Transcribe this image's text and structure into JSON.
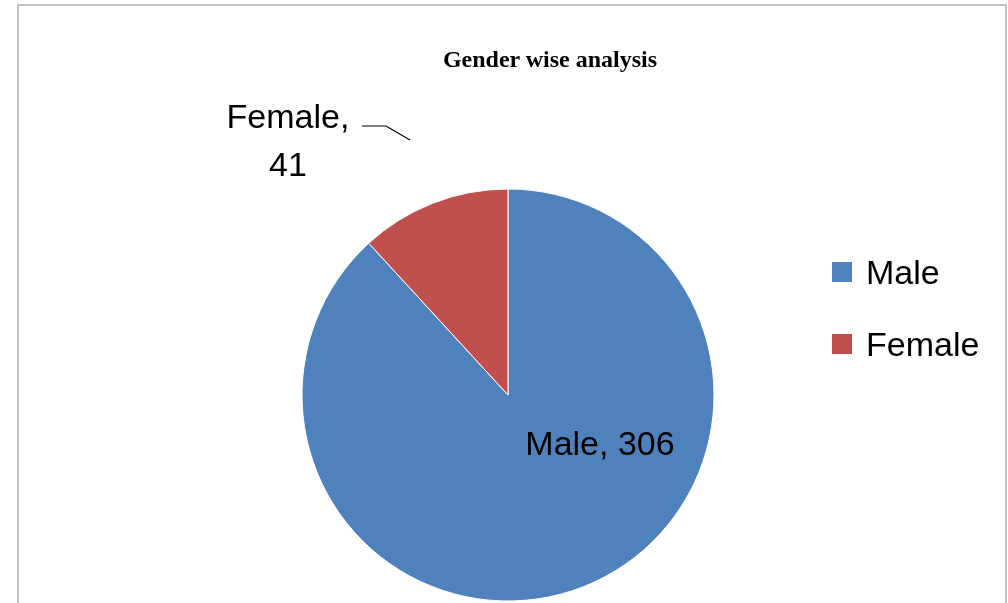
{
  "chart_data": {
    "type": "pie",
    "title": "Gender wise analysis",
    "categories": [
      "Male",
      "Female"
    ],
    "values": [
      306,
      41
    ],
    "colors": [
      "#4f81bd",
      "#c0504d"
    ],
    "value_labels": [
      "Male, 306",
      "Female, 41"
    ],
    "legend": "right"
  }
}
